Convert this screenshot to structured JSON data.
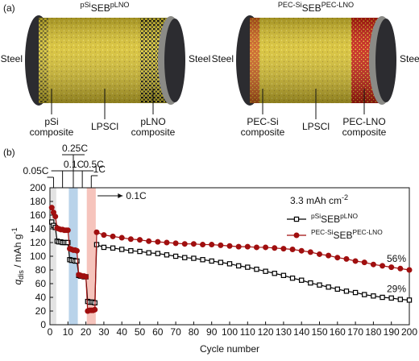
{
  "diagram": {
    "panel_label": "(a)",
    "cells": [
      {
        "title": [
          "pSi",
          "SEB",
          "pLNO"
        ],
        "left_end": "Steel",
        "right_end": "Steel",
        "left_layer": [
          "pSi",
          "composite"
        ],
        "middle_layer": "LPSCl",
        "right_layer": [
          "pLNO",
          "composite"
        ]
      },
      {
        "title": [
          "PEC-Si",
          "SEB",
          "PEC-LNO"
        ],
        "left_end": "Steel",
        "right_end": "Steel",
        "left_layer": [
          "PEC-Si",
          "composite"
        ],
        "middle_layer": "LPSCl",
        "right_layer": [
          "PEC-LNO",
          "composite"
        ]
      }
    ]
  },
  "chart_data": {
    "panel_label": "(b)",
    "type": "line",
    "xlabel": "Cycle number",
    "ylabel": [
      "q",
      "dis",
      " / mAh g",
      "-1"
    ],
    "annotation": [
      "3.3 mAh cm",
      "-2"
    ],
    "legend": "upper right",
    "x": [
      1,
      2,
      3,
      4,
      5,
      6,
      7,
      8,
      9,
      10,
      11,
      12,
      13,
      14,
      15,
      16,
      17,
      18,
      19,
      20,
      21,
      22,
      23,
      24,
      25,
      26,
      30,
      35,
      40,
      45,
      50,
      55,
      60,
      65,
      70,
      75,
      80,
      85,
      90,
      95,
      100,
      105,
      110,
      115,
      120,
      125,
      130,
      135,
      140,
      145,
      150,
      155,
      160,
      165,
      170,
      175,
      180,
      185,
      190,
      195,
      200
    ],
    "xlim": [
      0,
      200
    ],
    "ylim": [
      0,
      200
    ],
    "xticks": [
      0,
      10,
      20,
      30,
      40,
      50,
      60,
      70,
      80,
      90,
      100,
      110,
      120,
      130,
      140,
      150,
      160,
      170,
      180,
      190,
      200
    ],
    "yticks": [
      0,
      20,
      40,
      60,
      80,
      100,
      120,
      140,
      160,
      180,
      200
    ],
    "series": [
      {
        "name": [
          "pSi",
          "SEB",
          "pLNO"
        ],
        "color": "#000000",
        "marker": "square",
        "end_label": "29%",
        "values": [
          150,
          145,
          142,
          122,
          121,
          121,
          120,
          120,
          120,
          120,
          95,
          94,
          94,
          93,
          93,
          72,
          71,
          71,
          70,
          70,
          34,
          33,
          33,
          33,
          32,
          117,
          113,
          112,
          110,
          108,
          107,
          105,
          104,
          102,
          100,
          98,
          97,
          95,
          93,
          91,
          89,
          86,
          84,
          81,
          78,
          75,
          72,
          68,
          65,
          61,
          58,
          55,
          52,
          49,
          47,
          44,
          42,
          40,
          39,
          37,
          36
        ]
      },
      {
        "name": [
          "PEC-Si",
          "SEB",
          "PEC-LNO"
        ],
        "color": "#a00f0f",
        "marker": "circle",
        "end_label": "56%",
        "values": [
          171,
          164,
          158,
          141,
          140,
          139,
          139,
          138,
          138,
          138,
          111,
          110,
          109,
          109,
          108,
          73,
          72,
          71,
          71,
          70,
          20,
          21,
          21,
          21,
          22,
          135,
          131,
          129,
          127,
          125,
          124,
          122,
          121,
          120,
          119,
          118,
          118,
          117,
          117,
          116,
          115,
          114,
          114,
          113,
          113,
          112,
          111,
          110,
          108,
          106,
          103,
          101,
          98,
          96,
          93,
          91,
          88,
          86,
          84,
          82,
          80
        ]
      }
    ],
    "rate_steps": [
      {
        "label": "0.05C",
        "xrange": [
          0.5,
          3.5
        ],
        "color": "#e3e3e3"
      },
      {
        "label": "0.1C",
        "xrange": [
          3.5,
          10.5
        ]
      },
      {
        "label": "0.25C",
        "xrange": [
          10.5,
          15.5
        ],
        "color": "#b9d3ea"
      },
      {
        "label": "0.5C",
        "xrange": [
          15.5,
          20.5
        ]
      },
      {
        "label": "1C",
        "xrange": [
          20.5,
          25.5
        ],
        "color": "#f6c4bc"
      },
      {
        "label": "0.1C",
        "xrange": [
          25.5,
          200
        ]
      }
    ]
  }
}
